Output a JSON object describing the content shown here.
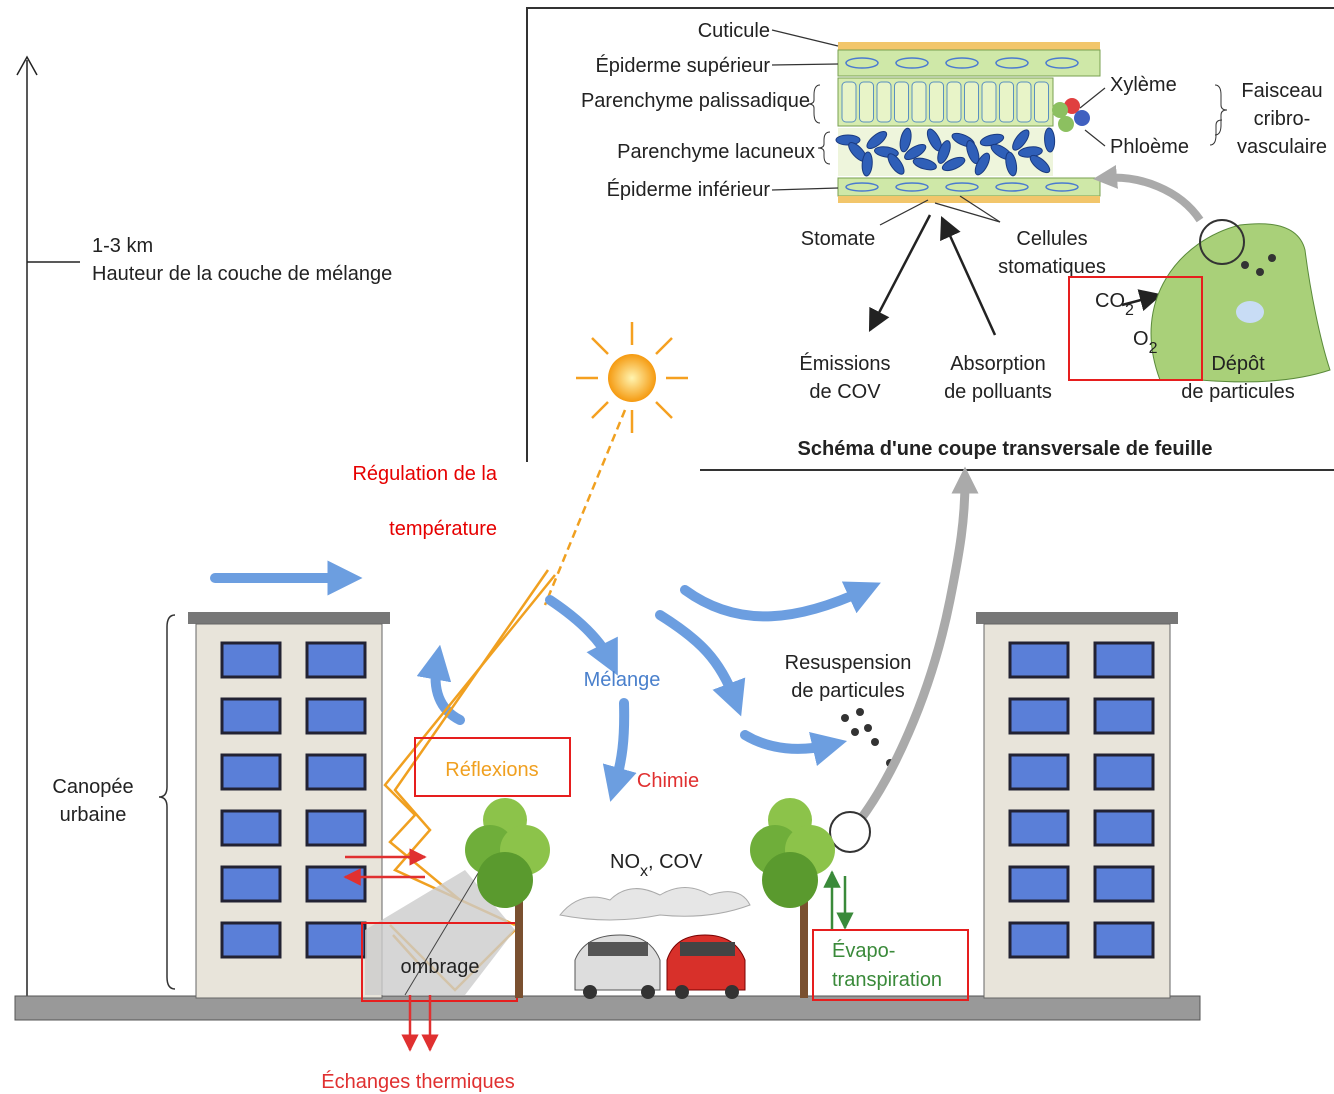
{
  "leaf": {
    "cuticle": "Cuticule",
    "upper_epidermis": "Épiderme supérieur",
    "palisade": "Parenchyme palissadique",
    "spongy": "Parenchyme lacuneux",
    "lower_epidermis": "Épiderme inférieur",
    "xylem": "Xylème",
    "phloem": "Phloème",
    "bundle": [
      "Faisceau",
      "cribro-",
      "vasculaire"
    ],
    "stomate": "Stomate",
    "guard_cells": [
      "Cellules",
      "stomatiques"
    ],
    "voc_emissions": [
      "Émissions",
      "de COV"
    ],
    "pollutant_absorption": [
      "Absorption",
      "de polluants"
    ],
    "co2": {
      "base": "CO",
      "sub": "2"
    },
    "o2": {
      "base": "O",
      "sub": "2"
    },
    "deposition": [
      "Dépôt",
      "de particules"
    ],
    "caption": "Schéma d'une coupe transversale de feuille"
  },
  "scene": {
    "height_value": "1-3 km",
    "height_label": "Hauteur de la couche de mélange",
    "title": [
      "Régulation de la",
      "température"
    ],
    "mixing": "Mélange",
    "chemistry": "Chimie",
    "reflections": "Réflexions",
    "resuspension": [
      "Resuspension",
      "de particules"
    ],
    "canopy": [
      "Canopée",
      "urbaine"
    ],
    "nox": {
      "base": "NO",
      "sub": "x",
      "rest": ", COV"
    },
    "shading": "ombrage",
    "evapo": [
      "Évapo-",
      "transpiration"
    ],
    "heat_exchange": "Échanges thermiques"
  }
}
